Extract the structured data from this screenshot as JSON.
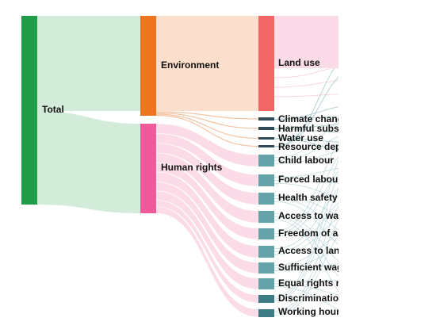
{
  "sankey": {
    "colors": {
      "total": "#1f9c48",
      "environment": "#ee7420",
      "human_rights": "#ee5a9a",
      "land_use": "#f26666",
      "env_issue_dark": "#2f4b57",
      "hr_issue": "#64a3a8",
      "hr_issue_dark": "#3d7a83",
      "link_total_env": "#d3ebd9",
      "link_env": "#fbdfcc",
      "link_hr": "#fadbe7",
      "link_cross": "#9fc4c8"
    },
    "nodes": {
      "total": {
        "label": "Total"
      },
      "environment": {
        "label": "Environment"
      },
      "human_rights": {
        "label": "Human rights"
      },
      "issues": [
        {
          "id": "land_use",
          "label": "Land use",
          "group": "environment"
        },
        {
          "id": "climate_change",
          "label": "Climate chang",
          "group": "environment"
        },
        {
          "id": "harmful_substances",
          "label": "Harmful subs",
          "group": "environment"
        },
        {
          "id": "water_use",
          "label": "Water use",
          "group": "environment"
        },
        {
          "id": "resource_depletion",
          "label": "Resource dep",
          "group": "environment"
        },
        {
          "id": "child_labour",
          "label": "Child labour",
          "group": "human_rights"
        },
        {
          "id": "forced_labour",
          "label": "Forced labou",
          "group": "human_rights"
        },
        {
          "id": "health_safety",
          "label": "Health safety",
          "group": "human_rights"
        },
        {
          "id": "access_to_water",
          "label": "Access to wa",
          "group": "human_rights"
        },
        {
          "id": "freedom_of_association",
          "label": "Freedom of a",
          "group": "human_rights"
        },
        {
          "id": "access_to_land",
          "label": "Access to lan",
          "group": "human_rights"
        },
        {
          "id": "sufficient_wages",
          "label": "Sufficient wag",
          "group": "human_rights"
        },
        {
          "id": "equal_rights",
          "label": "Equal rights r",
          "group": "human_rights"
        },
        {
          "id": "discrimination",
          "label": "Discriminatio",
          "group": "human_rights"
        },
        {
          "id": "working_hours",
          "label": "Working hour",
          "group": "human_rights"
        }
      ]
    }
  }
}
